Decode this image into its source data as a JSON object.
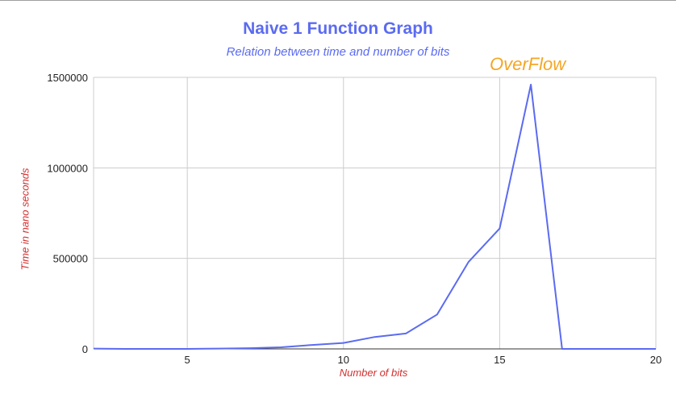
{
  "chart_data": {
    "type": "line",
    "title": "Naive 1 Function Graph",
    "subtitle": "Relation between time and number of bits",
    "xlabel": "Number of bits",
    "ylabel": "Time in nano seconds",
    "xlim": [
      2,
      20
    ],
    "ylim": [
      0,
      1500000
    ],
    "x_ticks": [
      5,
      10,
      15,
      20
    ],
    "y_ticks": [
      0,
      500000,
      1000000,
      1500000
    ],
    "x_tick_labels": [
      "5",
      "10",
      "15",
      "20"
    ],
    "y_tick_labels": [
      "0",
      "500000",
      "1000000",
      "1500000"
    ],
    "grid": true,
    "legend": "none",
    "annotation": "OverFlow",
    "series": [
      {
        "color": "#5b6bf0",
        "x": [
          2,
          3,
          4,
          5,
          6,
          7,
          8,
          9,
          10,
          11,
          12,
          13,
          14,
          15,
          16,
          17,
          18,
          19,
          20
        ],
        "y": [
          2000,
          0,
          0,
          0,
          2000,
          4000,
          9000,
          22000,
          33000,
          66000,
          85000,
          190000,
          480000,
          665000,
          1460000,
          0,
          0,
          0,
          0
        ]
      }
    ],
    "colors": {
      "title": "#5b6bf0",
      "axis_label": "#d32f2f",
      "annotation": "#f5a623",
      "grid": "#cccccc"
    }
  }
}
